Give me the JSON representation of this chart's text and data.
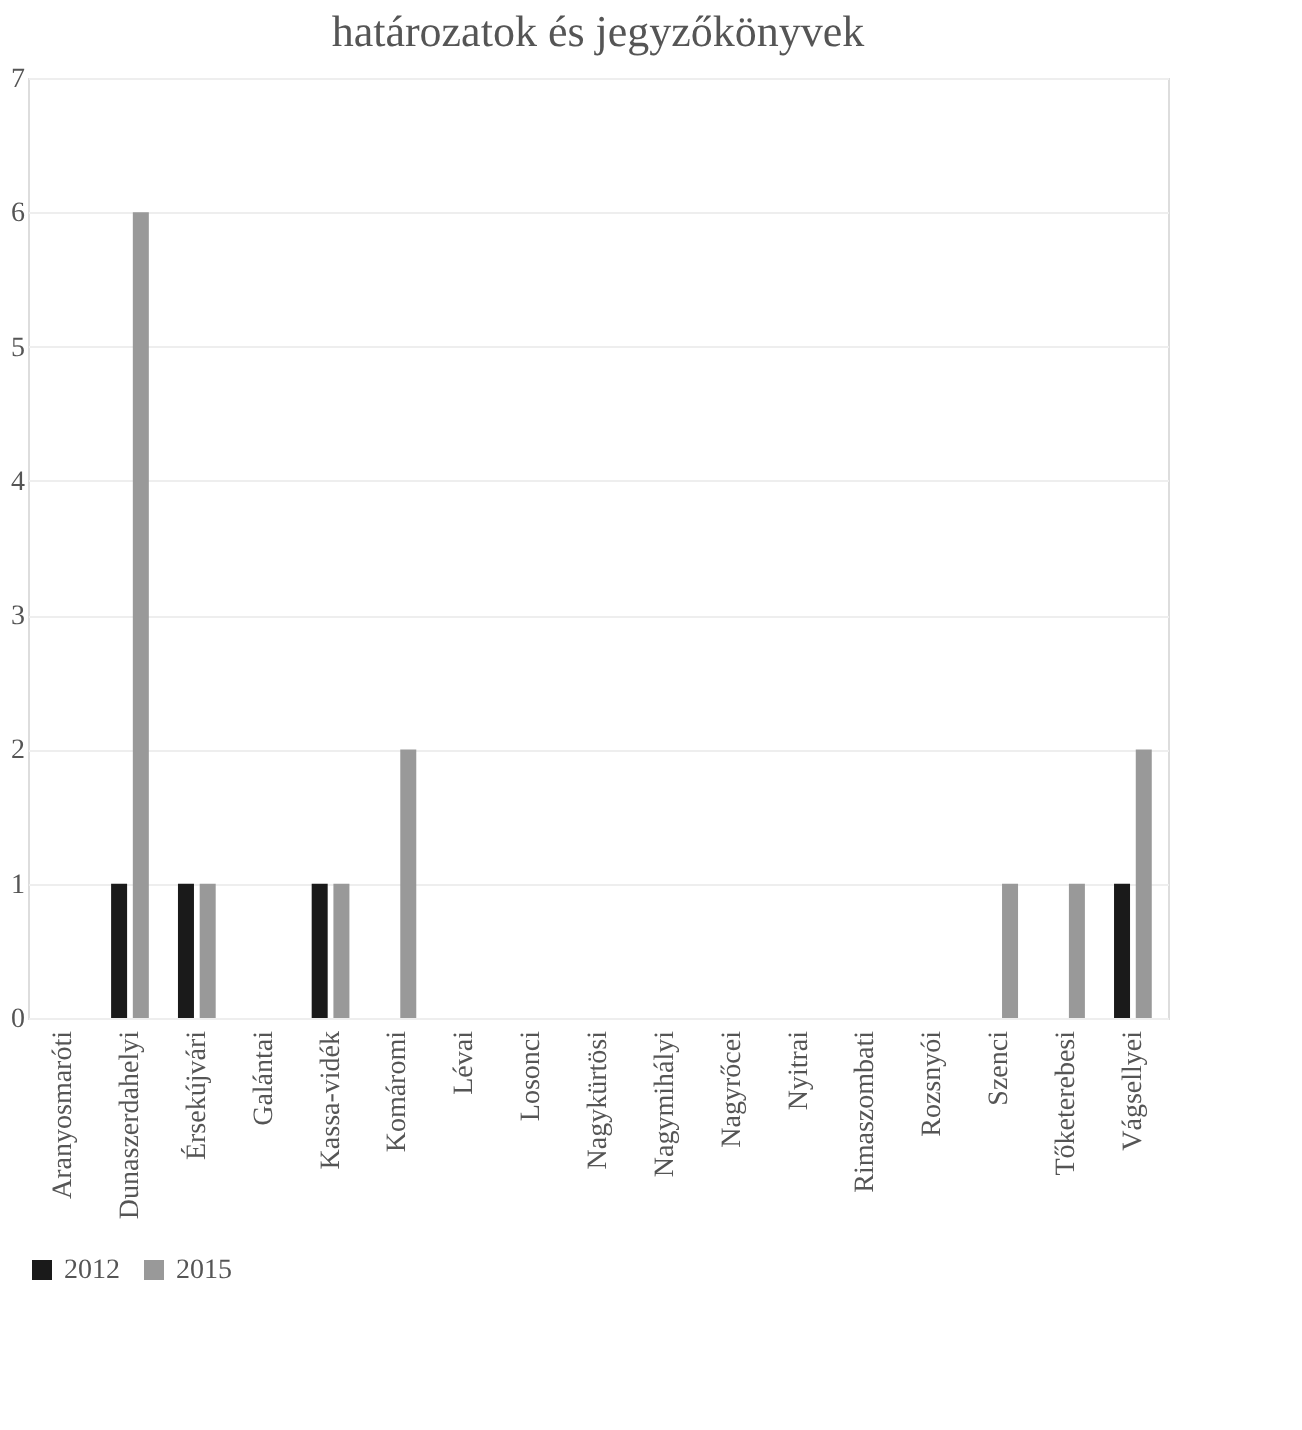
{
  "chart_data": {
    "type": "bar",
    "title": "határozatok és jegyzőkönyvek",
    "categories": [
      "Aranyosmaróti",
      "Dunaszerdahelyi",
      "Érsekújvári",
      "Galántai",
      "Kassa-vidék",
      "Komáromi",
      "Lévai",
      "Losonci",
      "Nagykürtösi",
      "Nagymihályi",
      "Nagyrőcei",
      "Nyitrai",
      "Rimaszombati",
      "Rozsnyói",
      "Szenci",
      "Tőketerebesi",
      "Vágsellyei"
    ],
    "series": [
      {
        "name": "2012",
        "color": "#1a1a1a",
        "values": [
          0,
          1,
          1,
          0,
          1,
          0,
          0,
          0,
          0,
          0,
          0,
          0,
          0,
          0,
          0,
          0,
          1
        ]
      },
      {
        "name": "2015",
        "color": "#999999",
        "values": [
          0,
          6,
          1,
          0,
          1,
          2,
          0,
          0,
          0,
          0,
          0,
          0,
          0,
          0,
          1,
          1,
          2
        ]
      }
    ],
    "ylim": [
      0,
      7
    ],
    "yticks": [
      0,
      1,
      2,
      3,
      4,
      5,
      6,
      7
    ],
    "grid": "y",
    "legend": "bottom"
  }
}
